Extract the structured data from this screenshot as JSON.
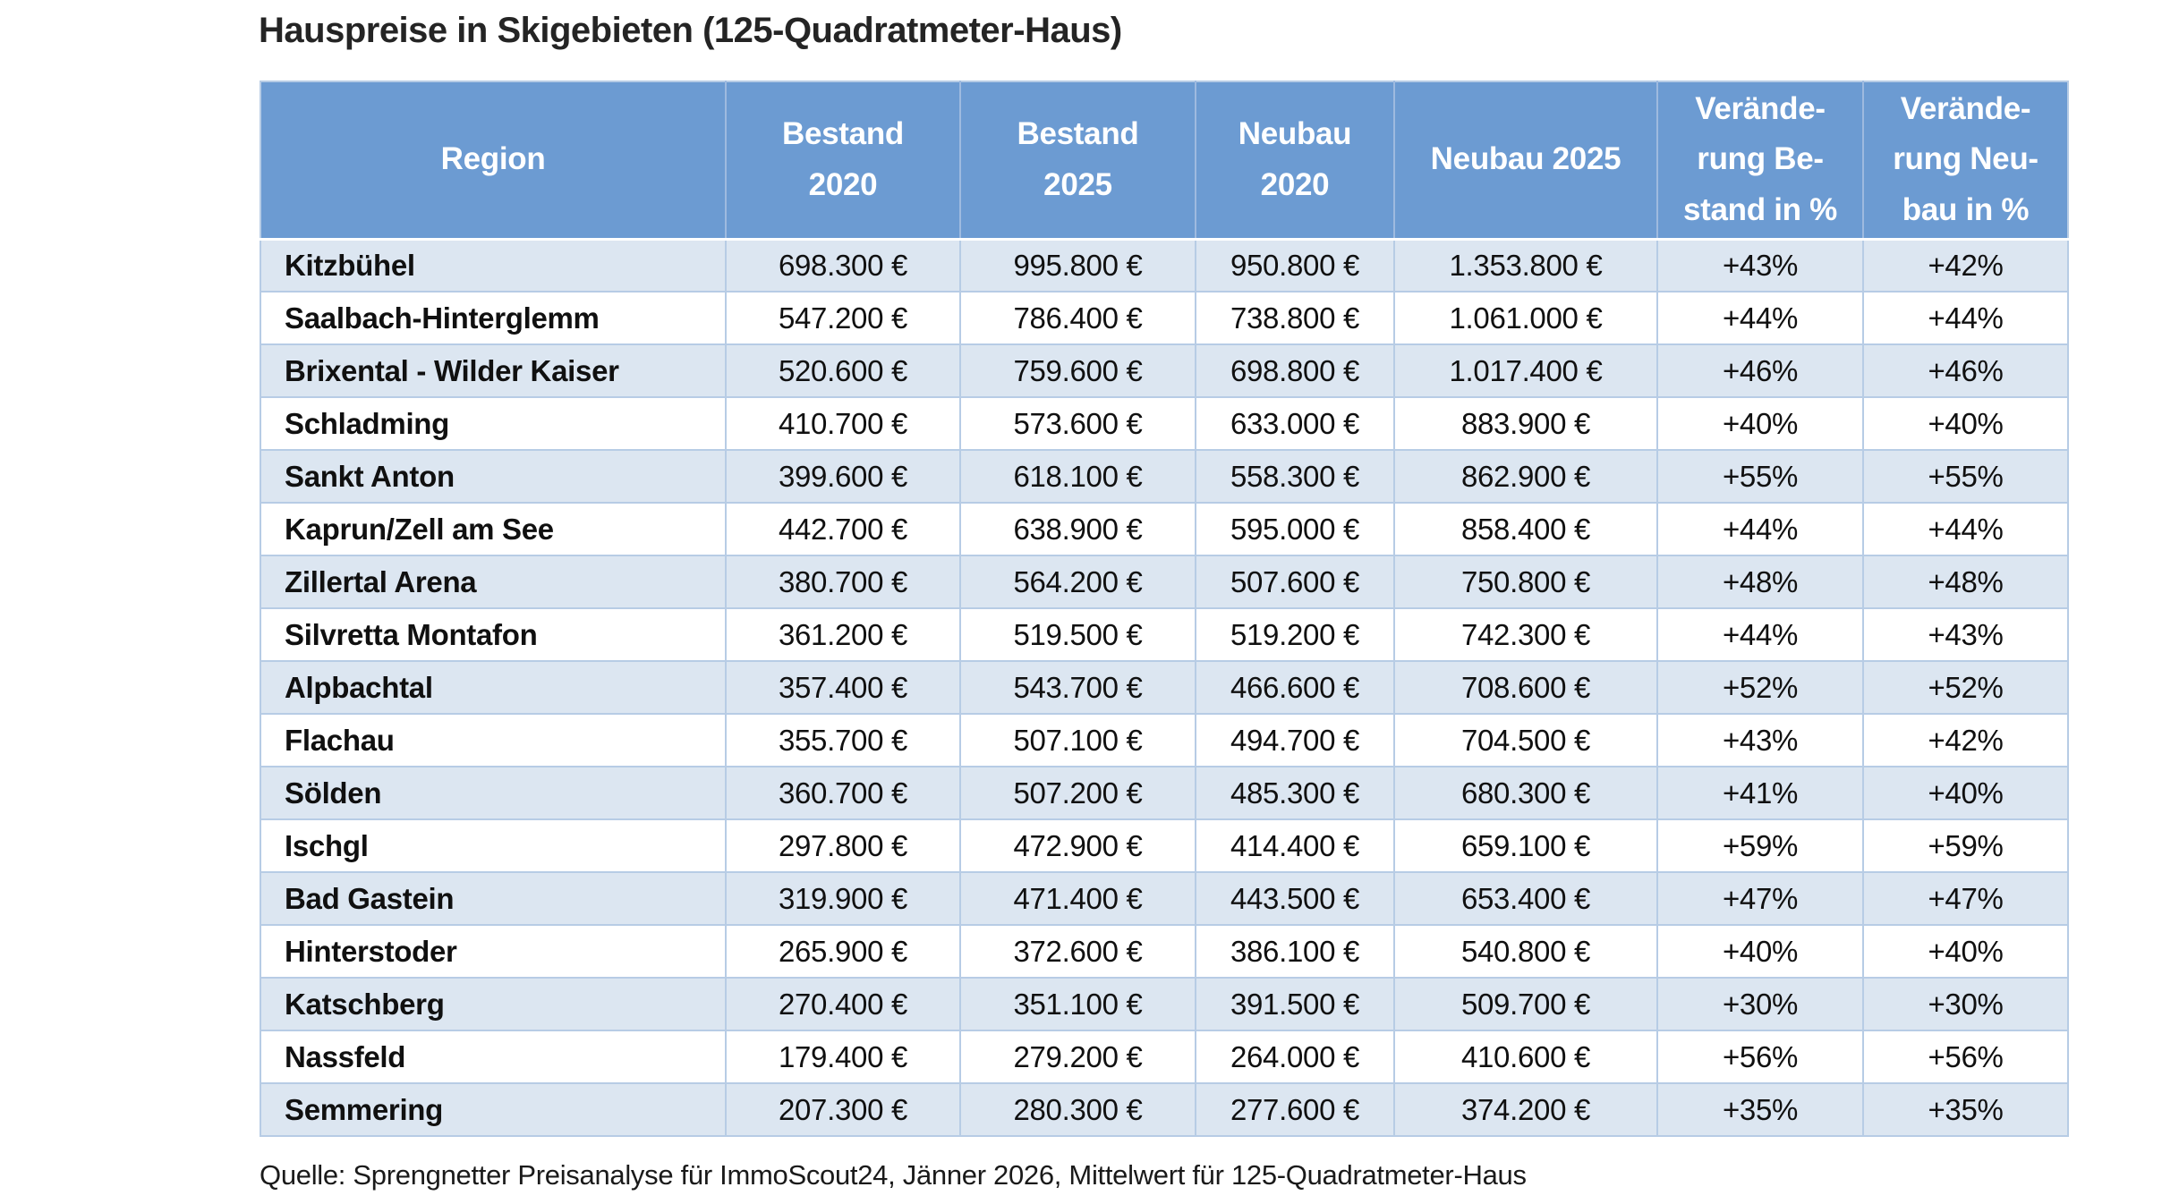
{
  "title": "Hauspreise in Skigebieten (125-Quadratmeter-Haus)",
  "source": "Quelle: Sprengnetter Preisanalyse für ImmoScout24, Jänner 2026, Mittelwert für 125-Quadratmeter-Haus",
  "colors": {
    "header_bg": "#6C9BD2",
    "header_text": "#ffffff",
    "row_alt_bg": "#DCE6F1",
    "row_bg": "#ffffff",
    "grid_line": "#B7CCE5",
    "header_divider": "#9EBADF",
    "title_text": "#242424",
    "body_text": "#101010"
  },
  "chart_data": {
    "type": "table",
    "title": "Hauspreise in Skigebieten (125-Quadratmeter-Haus)",
    "source": "Quelle: Sprengnetter Preisanalyse für ImmoScout24, Jänner 2026, Mittelwert für 125-Quadratmeter-Haus",
    "columns": [
      "Region",
      "Bestand 2020",
      "Bestand 2025",
      "Neubau 2020",
      "Neubau 2025",
      "Veränderung Bestand in %",
      "Veränderung Neubau in %"
    ],
    "header_display": [
      [
        "Region"
      ],
      [
        "Bestand",
        "2020"
      ],
      [
        "Bestand",
        "2025"
      ],
      [
        "Neubau",
        "2020"
      ],
      [
        "Neubau 2025"
      ],
      [
        "Verände-",
        "rung Be-",
        "stand in %"
      ],
      [
        "Verände-",
        "rung Neu-",
        "bau in %"
      ]
    ],
    "rows": [
      [
        "Kitzbühel",
        "698.300 €",
        "995.800 €",
        "950.800 €",
        "1.353.800 €",
        "+43%",
        "+42%"
      ],
      [
        "Saalbach-Hinterglemm",
        "547.200 €",
        "786.400 €",
        "738.800 €",
        "1.061.000 €",
        "+44%",
        "+44%"
      ],
      [
        "Brixental - Wilder Kaiser",
        "520.600 €",
        "759.600 €",
        "698.800 €",
        "1.017.400 €",
        "+46%",
        "+46%"
      ],
      [
        "Schladming",
        "410.700 €",
        "573.600 €",
        "633.000 €",
        "883.900 €",
        "+40%",
        "+40%"
      ],
      [
        "Sankt Anton",
        "399.600 €",
        "618.100 €",
        "558.300 €",
        "862.900 €",
        "+55%",
        "+55%"
      ],
      [
        "Kaprun/Zell am See",
        "442.700 €",
        "638.900 €",
        "595.000 €",
        "858.400 €",
        "+44%",
        "+44%"
      ],
      [
        "Zillertal Arena",
        "380.700 €",
        "564.200 €",
        "507.600 €",
        "750.800 €",
        "+48%",
        "+48%"
      ],
      [
        "Silvretta Montafon",
        "361.200 €",
        "519.500 €",
        "519.200 €",
        "742.300 €",
        "+44%",
        "+43%"
      ],
      [
        "Alpbachtal",
        "357.400 €",
        "543.700 €",
        "466.600 €",
        "708.600 €",
        "+52%",
        "+52%"
      ],
      [
        "Flachau",
        "355.700 €",
        "507.100 €",
        "494.700 €",
        "704.500 €",
        "+43%",
        "+42%"
      ],
      [
        "Sölden",
        "360.700 €",
        "507.200 €",
        "485.300 €",
        "680.300 €",
        "+41%",
        "+40%"
      ],
      [
        "Ischgl",
        "297.800 €",
        "472.900 €",
        "414.400 €",
        "659.100 €",
        "+59%",
        "+59%"
      ],
      [
        "Bad Gastein",
        "319.900 €",
        "471.400 €",
        "443.500 €",
        "653.400 €",
        "+47%",
        "+47%"
      ],
      [
        "Hinterstoder",
        "265.900 €",
        "372.600 €",
        "386.100 €",
        "540.800 €",
        "+40%",
        "+40%"
      ],
      [
        "Katschberg",
        "270.400 €",
        "351.100 €",
        "391.500 €",
        "509.700 €",
        "+30%",
        "+30%"
      ],
      [
        "Nassfeld",
        "179.400 €",
        "279.200 €",
        "264.000 €",
        "410.600 €",
        "+56%",
        "+56%"
      ],
      [
        "Semmering",
        "207.300 €",
        "280.300 €",
        "277.600 €",
        "374.200 €",
        "+35%",
        "+35%"
      ]
    ]
  }
}
